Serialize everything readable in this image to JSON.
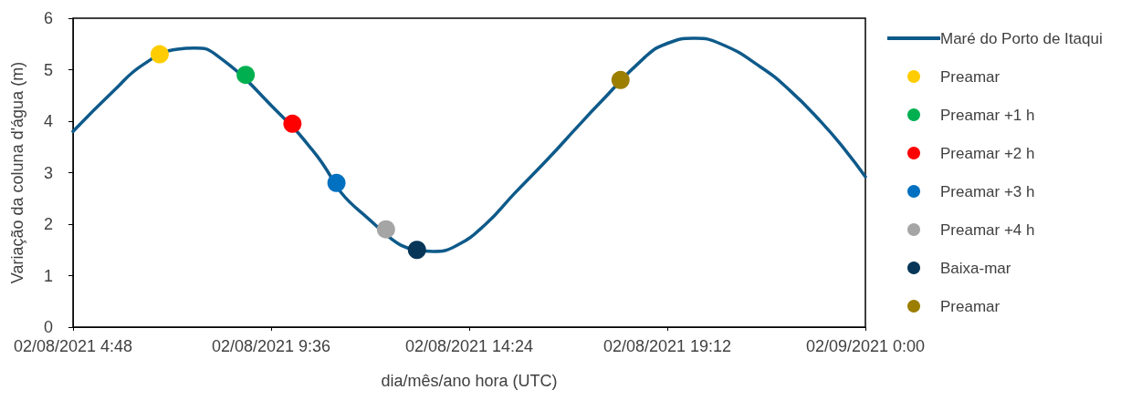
{
  "chart_data": {
    "type": "line",
    "xlabel": "dia/mês/ano hora (UTC)",
    "ylabel": "Variação da coluna d'água (m)",
    "xlim": [
      "2021-02-08T04:48",
      "2021-02-09T00:00"
    ],
    "xticks": [
      {
        "value": "2021-02-08T04:48",
        "label": "02/08/2021 4:48"
      },
      {
        "value": "2021-02-08T09:36",
        "label": "02/08/2021 9:36"
      },
      {
        "value": "2021-02-08T14:24",
        "label": "02/08/2021 14:24"
      },
      {
        "value": "2021-02-08T19:12",
        "label": "02/08/2021 19:12"
      },
      {
        "value": "2021-02-09T00:00",
        "label": "02/09/2021 0:00"
      }
    ],
    "ylim": [
      0,
      6
    ],
    "yticks": [
      0,
      1,
      2,
      3,
      4,
      5,
      6
    ],
    "grid": false,
    "legend": "right",
    "series": [
      {
        "name": "Maré do Porto de Itaqui",
        "color": "#0e5a8a",
        "marker": "none",
        "x": [
          "2021-02-08T04:48",
          "2021-02-08T05:48",
          "2021-02-08T06:30",
          "2021-02-08T07:20",
          "2021-02-08T07:45",
          "2021-02-08T08:15",
          "2021-02-08T09:50",
          "2021-02-08T10:36",
          "2021-02-08T11:45",
          "2021-02-08T13:32",
          "2021-02-08T14:05",
          "2021-02-08T14:48",
          "2021-02-08T15:30",
          "2021-02-08T16:18",
          "2021-02-08T17:02",
          "2021-02-08T17:30",
          "2021-02-08T18:40",
          "2021-02-08T19:10",
          "2021-02-08T19:50",
          "2021-02-08T20:30",
          "2021-02-08T21:28",
          "2021-02-08T22:10",
          "2021-02-08T22:56",
          "2021-02-08T23:30",
          "2021-02-09T00:00"
        ],
        "values": [
          3.8,
          4.6,
          5.1,
          5.4,
          5.42,
          5.3,
          4.12,
          3.44,
          2.25,
          1.47,
          1.58,
          2.0,
          2.6,
          3.26,
          3.9,
          4.3,
          5.25,
          5.5,
          5.61,
          5.5,
          5.05,
          4.6,
          3.98,
          3.45,
          2.92
        ]
      },
      {
        "name": "Preamar",
        "type": "scatter",
        "color": "#ffcc00",
        "marker": "circle",
        "x": [
          "2021-02-08T06:54"
        ],
        "values": [
          5.3
        ]
      },
      {
        "name": "Preamar +1 h",
        "type": "scatter",
        "color": "#00b050",
        "marker": "circle",
        "x": [
          "2021-02-08T08:59"
        ],
        "values": [
          4.9
        ]
      },
      {
        "name": "Preamar +2 h",
        "type": "scatter",
        "color": "#ff0000",
        "marker": "circle",
        "x": [
          "2021-02-08T10:07"
        ],
        "values": [
          3.95
        ]
      },
      {
        "name": "Preamar +3 h",
        "type": "scatter",
        "color": "#0070c0",
        "marker": "circle",
        "x": [
          "2021-02-08T11:11"
        ],
        "values": [
          2.8
        ]
      },
      {
        "name": "Preamar +4 h",
        "type": "scatter",
        "color": "#a5a5a5",
        "marker": "circle",
        "x": [
          "2021-02-08T12:23"
        ],
        "values": [
          1.9
        ]
      },
      {
        "name": "Baixa-mar",
        "type": "scatter",
        "color": "#073658",
        "marker": "circle",
        "x": [
          "2021-02-08T13:08"
        ],
        "values": [
          1.5
        ]
      },
      {
        "name": "Preamar",
        "type": "scatter",
        "color": "#9c7e00",
        "marker": "circle",
        "x": [
          "2021-02-08T18:04"
        ],
        "values": [
          4.8
        ]
      }
    ]
  }
}
